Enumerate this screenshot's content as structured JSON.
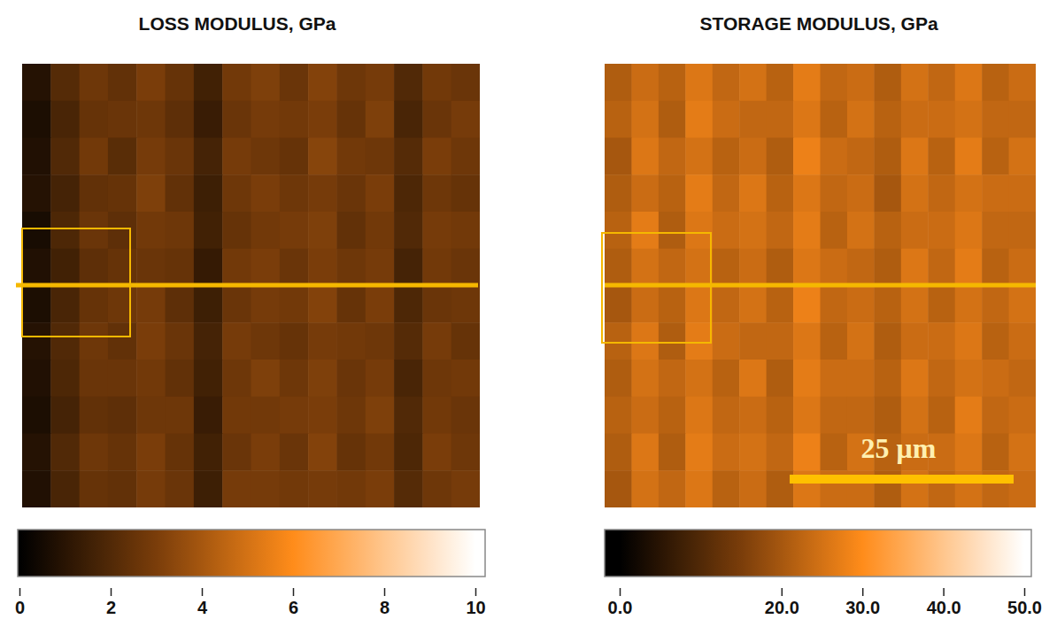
{
  "chart_data": [
    {
      "type": "heatmap",
      "title": "LOSS MODULUS, GPa",
      "tick_labels": false,
      "colorbar": {
        "range": [
          0,
          10
        ],
        "ticks": [
          0,
          2,
          4,
          6,
          8,
          10
        ]
      },
      "cells": [
        [
          0.9,
          2.1,
          2.7,
          2.4,
          3.0,
          2.5,
          1.6,
          2.8,
          3.1,
          2.6,
          3.2,
          2.7,
          2.9,
          2.0,
          2.8,
          2.6
        ],
        [
          0.7,
          1.8,
          2.5,
          2.6,
          2.7,
          2.3,
          1.4,
          2.6,
          2.9,
          2.8,
          3.0,
          2.5,
          3.1,
          1.8,
          2.6,
          2.9
        ],
        [
          0.8,
          2.0,
          2.8,
          2.2,
          2.9,
          2.6,
          1.7,
          2.9,
          2.7,
          2.5,
          3.3,
          2.8,
          2.7,
          2.1,
          3.0,
          2.7
        ],
        [
          0.9,
          1.7,
          2.4,
          2.5,
          3.1,
          2.4,
          1.5,
          2.7,
          3.0,
          2.7,
          2.9,
          2.6,
          3.0,
          1.9,
          2.7,
          2.5
        ],
        [
          0.6,
          1.9,
          2.6,
          2.3,
          2.8,
          2.7,
          1.6,
          2.5,
          2.8,
          2.9,
          3.1,
          2.4,
          2.8,
          2.0,
          2.9,
          2.8
        ],
        [
          0.8,
          1.6,
          2.3,
          2.5,
          2.6,
          2.5,
          1.3,
          2.8,
          3.0,
          2.6,
          3.0,
          2.7,
          2.9,
          1.7,
          2.8,
          2.6
        ],
        [
          0.7,
          1.8,
          2.5,
          2.7,
          2.9,
          2.3,
          1.5,
          2.6,
          2.9,
          2.8,
          3.2,
          2.5,
          3.0,
          1.9,
          2.6,
          2.7
        ],
        [
          0.9,
          2.0,
          2.7,
          2.4,
          3.0,
          2.6,
          1.7,
          2.9,
          2.7,
          2.5,
          2.9,
          2.8,
          2.7,
          2.1,
          2.9,
          2.5
        ],
        [
          0.8,
          1.9,
          2.6,
          2.6,
          2.8,
          2.4,
          1.6,
          2.7,
          3.1,
          2.7,
          3.1,
          2.6,
          2.9,
          1.8,
          2.7,
          2.8
        ],
        [
          0.7,
          1.7,
          2.4,
          2.3,
          2.7,
          2.7,
          1.4,
          2.8,
          2.8,
          2.9,
          3.0,
          2.7,
          3.1,
          2.0,
          2.8,
          2.6
        ],
        [
          0.9,
          2.0,
          2.7,
          2.5,
          3.0,
          2.5,
          1.6,
          2.6,
          3.0,
          2.6,
          3.2,
          2.5,
          2.8,
          1.9,
          3.0,
          2.7
        ],
        [
          0.8,
          1.8,
          2.5,
          2.4,
          2.9,
          2.6,
          1.5,
          2.9,
          2.9,
          2.8,
          2.9,
          2.8,
          3.0,
          2.1,
          2.7,
          2.9
        ]
      ]
    },
    {
      "type": "heatmap",
      "title": "STORAGE MODULUS, GPa",
      "tick_labels": false,
      "colorbar": {
        "range": [
          0,
          50
        ],
        "ticks": [
          {
            "value": 0,
            "label": "0.0"
          },
          {
            "value": 20,
            "label": "20.0"
          },
          {
            "value": 30,
            "label": "30.0"
          },
          {
            "value": 40,
            "label": "40.0"
          },
          {
            "value": 50,
            "label": "50.0"
          }
        ]
      },
      "annotations": [
        "25 μm"
      ],
      "cells": [
        [
          21,
          24,
          22,
          26,
          23,
          25,
          22,
          27,
          23,
          24,
          21,
          25,
          23,
          26,
          22,
          24
        ],
        [
          22,
          25,
          21,
          27,
          24,
          23,
          23,
          26,
          22,
          25,
          22,
          24,
          24,
          25,
          23,
          23
        ],
        [
          20,
          26,
          23,
          25,
          22,
          24,
          21,
          28,
          24,
          23,
          21,
          26,
          22,
          27,
          22,
          25
        ],
        [
          21,
          24,
          22,
          27,
          23,
          26,
          22,
          26,
          23,
          24,
          20,
          25,
          23,
          25,
          24,
          24
        ],
        [
          22,
          27,
          21,
          26,
          24,
          25,
          23,
          27,
          22,
          25,
          22,
          24,
          24,
          26,
          23,
          23
        ],
        [
          21,
          25,
          23,
          25,
          22,
          24,
          21,
          26,
          24,
          23,
          21,
          26,
          23,
          27,
          22,
          24
        ],
        [
          20,
          24,
          22,
          26,
          23,
          25,
          22,
          28,
          23,
          24,
          22,
          25,
          22,
          25,
          23,
          25
        ],
        [
          22,
          26,
          21,
          27,
          24,
          23,
          23,
          26,
          22,
          25,
          21,
          24,
          24,
          26,
          22,
          24
        ],
        [
          21,
          25,
          23,
          25,
          22,
          26,
          21,
          27,
          24,
          24,
          22,
          26,
          23,
          25,
          24,
          23
        ],
        [
          22,
          24,
          22,
          26,
          23,
          24,
          22,
          26,
          23,
          23,
          21,
          25,
          22,
          27,
          23,
          24
        ],
        [
          21,
          26,
          21,
          27,
          24,
          25,
          23,
          28,
          22,
          25,
          22,
          24,
          24,
          26,
          22,
          25
        ],
        [
          20,
          25,
          23,
          26,
          22,
          24,
          21,
          26,
          24,
          24,
          21,
          25,
          23,
          25,
          23,
          24
        ]
      ]
    }
  ]
}
